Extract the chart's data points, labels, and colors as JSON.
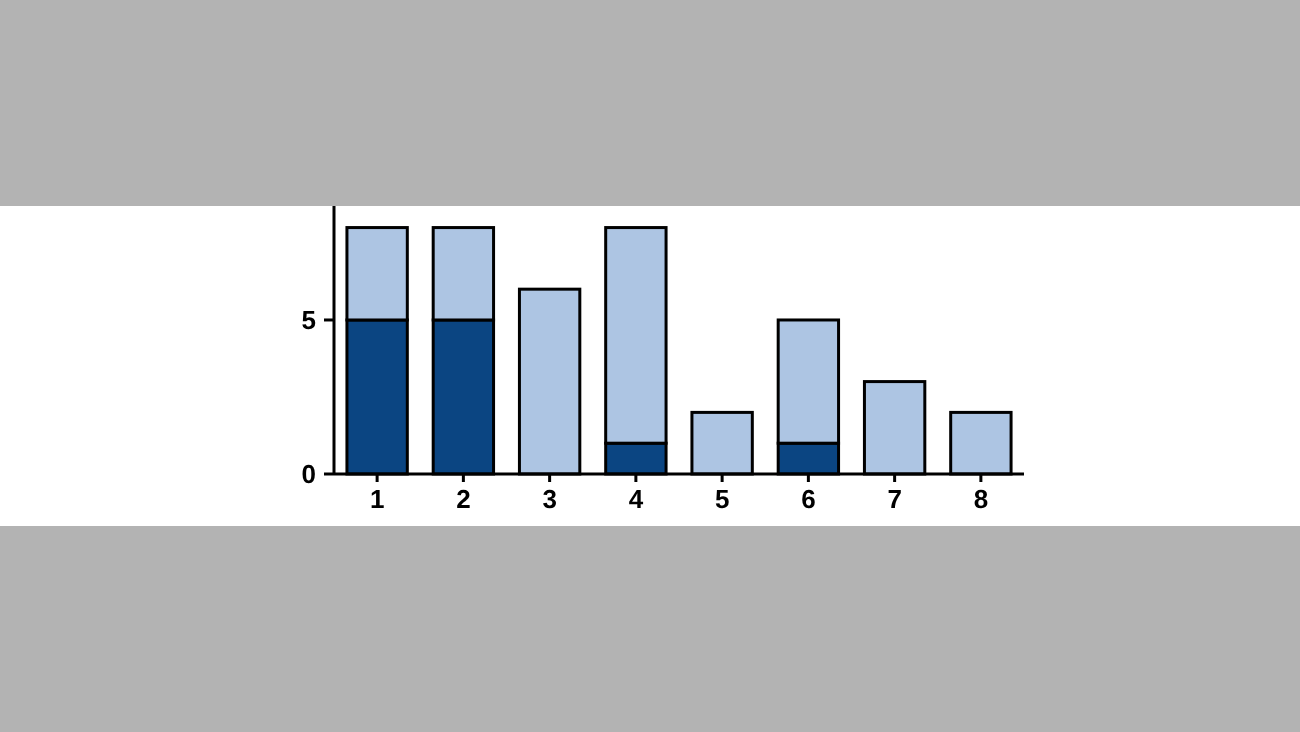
{
  "chart_data": {
    "type": "bar",
    "stacked": true,
    "categories": [
      "1",
      "2",
      "3",
      "4",
      "5",
      "6",
      "7",
      "8"
    ],
    "series": [
      {
        "color": "#0b4582",
        "values": [
          5,
          5,
          0,
          1,
          0,
          1,
          0,
          0
        ]
      },
      {
        "color": "#adc5e3",
        "values": [
          3,
          3,
          6,
          7,
          2,
          4,
          3,
          2
        ]
      }
    ],
    "ylim": [
      0,
      8.7
    ],
    "yticks": [
      0,
      5
    ],
    "grid": false
  }
}
